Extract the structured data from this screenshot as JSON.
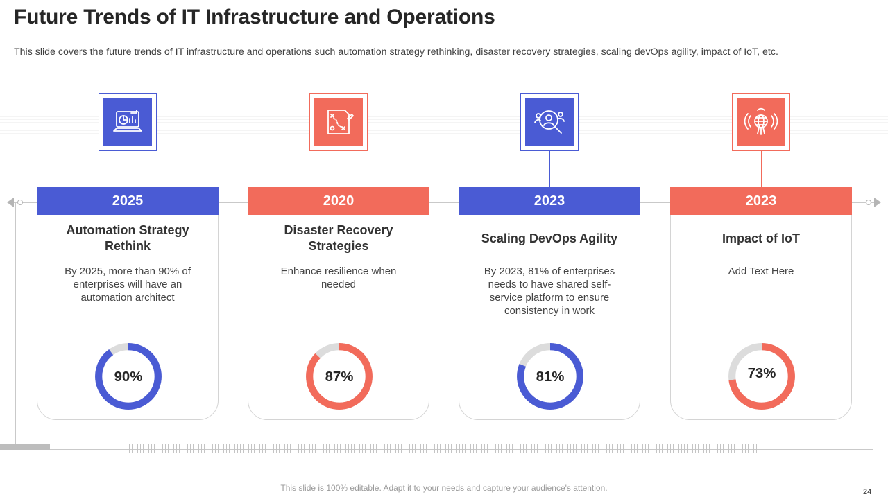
{
  "slide": {
    "title": "Future Trends of IT Infrastructure and Operations",
    "subtitle": "This slide covers the future trends of IT infrastructure  and operations such automation strategy rethinking, disaster recovery strategies, scaling devOps agility, impact of IoT,  etc.",
    "footer": "This slide is 100% editable. Adapt it to your needs and capture your audience's attention.",
    "page_number": "24"
  },
  "colors": {
    "blue": "#4A5BD4",
    "red": "#F26B5B",
    "track": "#DCDCDC",
    "frame": "#C9C9C9"
  },
  "cards": [
    {
      "year": "2025",
      "title": "Automation Strategy Rethink",
      "text": "By 2025, more than 90% of enterprises will have an automation architect",
      "percent_label": "90%",
      "percent": 90,
      "color": "#4A5BD4",
      "icon": "laptop-analytics-icon"
    },
    {
      "year": "2020",
      "title": "Disaster Recovery Strategies",
      "text": "Enhance resilience when needed",
      "percent_label": "87%",
      "percent": 87,
      "color": "#F26B5B",
      "icon": "strategy-map-icon"
    },
    {
      "year": "2023",
      "title": "Scaling DevOps Agility",
      "text": "By 2023, 81% of enterprises needs to have shared self-service platform to ensure consistency in work",
      "percent_label": "81%",
      "percent": 81,
      "color": "#4A5BD4",
      "icon": "user-search-icon"
    },
    {
      "year": "2023",
      "title": "Impact of IoT",
      "text": "Add Text Here",
      "percent_label": "73%",
      "percent": 73,
      "color": "#F26B5B",
      "icon": "iot-globe-icon"
    }
  ]
}
